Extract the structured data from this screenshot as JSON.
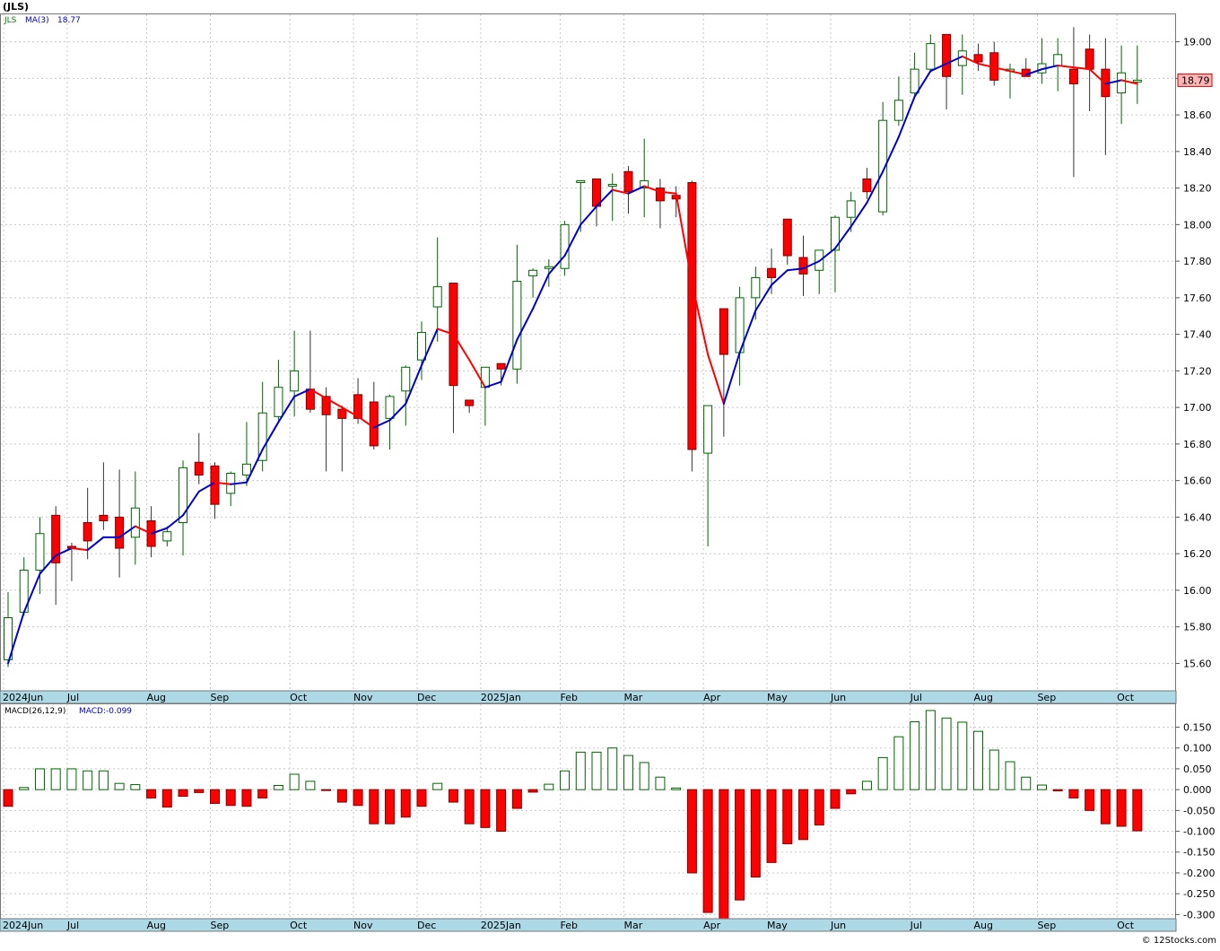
{
  "header": {
    "title": "(JLS)"
  },
  "price_panel": {
    "legend_symbol": "JLS",
    "legend_ma_label": "MA(3)",
    "legend_ma_value": "18.77",
    "last_price_label": "18.79"
  },
  "macd_panel": {
    "legend_label": "MACD(26,12,9)",
    "legend_value": "MACD:-0.099"
  },
  "footer": {
    "copyright": "© 12Stocks.com"
  },
  "colors": {
    "up_candle_border": "#006400",
    "down_candle_fill": "#ff0000",
    "ma_rising": "#0000cc",
    "ma_falling": "#ff0000",
    "axis_strip": "#add8e6",
    "last_price_bg": "#ffb6b6"
  },
  "chart_data": [
    {
      "type": "candlestick",
      "name": "JLS",
      "x_labels": [
        "2024Jun",
        "Jul",
        "Aug",
        "Sep",
        "Oct",
        "Nov",
        "Dec",
        "2025Jan",
        "Feb",
        "Mar",
        "Apr",
        "May",
        "Jun",
        "Jul",
        "Aug",
        "Sep",
        "Oct"
      ],
      "x_label_week_index": [
        0,
        4,
        9,
        13,
        18,
        22,
        26,
        30,
        35,
        39,
        44,
        48,
        52,
        57,
        61,
        65,
        70
      ],
      "yticks": [
        "15.60",
        "15.80",
        "16.00",
        "16.20",
        "16.40",
        "16.60",
        "16.80",
        "17.00",
        "17.20",
        "17.40",
        "17.60",
        "17.80",
        "18.00",
        "18.20",
        "18.40",
        "18.60",
        "18.80",
        "19.00"
      ],
      "ylim": [
        15.45,
        19.15
      ],
      "grid": true,
      "ohlc": [
        [
          15.62,
          15.99,
          15.58,
          15.85
        ],
        [
          15.88,
          16.18,
          15.86,
          16.11
        ],
        [
          16.11,
          16.4,
          15.98,
          16.31
        ],
        [
          16.41,
          16.46,
          15.92,
          16.15
        ],
        [
          16.24,
          16.26,
          16.05,
          16.23
        ],
        [
          16.37,
          16.56,
          16.17,
          16.27
        ],
        [
          16.41,
          16.7,
          16.33,
          16.38
        ],
        [
          16.4,
          16.66,
          16.07,
          16.23
        ],
        [
          16.29,
          16.65,
          16.14,
          16.45
        ],
        [
          16.38,
          16.46,
          16.18,
          16.24
        ],
        [
          16.27,
          16.35,
          16.24,
          16.32
        ],
        [
          16.37,
          16.71,
          16.19,
          16.67
        ],
        [
          16.7,
          16.86,
          16.58,
          16.63
        ],
        [
          16.68,
          16.7,
          16.39,
          16.47
        ],
        [
          16.53,
          16.65,
          16.46,
          16.64
        ],
        [
          16.63,
          16.92,
          16.57,
          16.69
        ],
        [
          16.71,
          17.14,
          16.65,
          16.97
        ],
        [
          16.95,
          17.26,
          16.93,
          17.11
        ],
        [
          17.09,
          17.42,
          16.95,
          17.2
        ],
        [
          17.1,
          17.42,
          16.97,
          16.99
        ],
        [
          17.06,
          17.11,
          16.65,
          16.96
        ],
        [
          16.99,
          17.01,
          16.65,
          16.94
        ],
        [
          17.07,
          17.16,
          16.91,
          16.94
        ],
        [
          17.03,
          17.14,
          16.77,
          16.79
        ],
        [
          16.94,
          17.07,
          16.77,
          17.06
        ],
        [
          17.09,
          17.23,
          16.9,
          17.22
        ],
        [
          17.26,
          17.47,
          17.15,
          17.41
        ],
        [
          17.55,
          17.93,
          17.36,
          17.66
        ],
        [
          17.68,
          17.68,
          16.86,
          17.12
        ],
        [
          17.04,
          17.04,
          16.97,
          17.01
        ],
        [
          17.11,
          17.21,
          16.9,
          17.22
        ],
        [
          17.24,
          17.24,
          17.12,
          17.21
        ],
        [
          17.21,
          17.89,
          17.13,
          17.69
        ],
        [
          17.72,
          17.76,
          17.6,
          17.75
        ],
        [
          17.76,
          17.81,
          17.66,
          17.77
        ],
        [
          17.76,
          18.02,
          17.72,
          18.0
        ],
        [
          18.23,
          18.24,
          17.96,
          18.24
        ],
        [
          18.25,
          18.25,
          17.99,
          18.1
        ],
        [
          18.22,
          18.28,
          18.02,
          18.22
        ],
        [
          18.29,
          18.32,
          18.06,
          18.18
        ],
        [
          18.2,
          18.47,
          18.04,
          18.24
        ],
        [
          18.2,
          18.25,
          17.98,
          18.13
        ],
        [
          18.16,
          18.21,
          18.04,
          18.14
        ],
        [
          18.23,
          18.24,
          16.65,
          16.77
        ],
        [
          16.75,
          17.01,
          16.24,
          17.01
        ],
        [
          17.54,
          17.54,
          16.84,
          17.29
        ],
        [
          17.3,
          17.66,
          17.12,
          17.6
        ],
        [
          17.6,
          17.77,
          17.48,
          17.71
        ],
        [
          17.76,
          17.87,
          17.62,
          17.71
        ],
        [
          18.03,
          18.03,
          17.78,
          17.83
        ],
        [
          17.82,
          17.94,
          17.61,
          17.73
        ],
        [
          17.75,
          17.86,
          17.62,
          17.86
        ],
        [
          17.86,
          18.05,
          17.63,
          18.04
        ],
        [
          18.04,
          18.18,
          17.96,
          18.13
        ],
        [
          18.25,
          18.31,
          18.14,
          18.18
        ],
        [
          18.07,
          18.67,
          18.05,
          18.57
        ],
        [
          18.57,
          18.81,
          18.54,
          18.68
        ],
        [
          18.72,
          18.94,
          18.69,
          18.85
        ],
        [
          18.85,
          19.04,
          18.84,
          18.99
        ],
        [
          19.04,
          19.04,
          18.63,
          18.81
        ],
        [
          18.87,
          19.04,
          18.71,
          18.95
        ],
        [
          18.93,
          18.99,
          18.84,
          18.89
        ],
        [
          18.94,
          19.0,
          18.76,
          18.79
        ],
        [
          18.85,
          18.88,
          18.69,
          18.85
        ],
        [
          18.85,
          18.91,
          18.82,
          18.81
        ],
        [
          18.83,
          19.02,
          18.77,
          18.88
        ],
        [
          18.87,
          19.02,
          18.73,
          18.93
        ],
        [
          18.85,
          19.08,
          18.26,
          18.77
        ],
        [
          18.96,
          19.04,
          18.62,
          18.85
        ],
        [
          18.85,
          19.02,
          18.38,
          18.7
        ],
        [
          18.72,
          18.98,
          18.55,
          18.83
        ],
        [
          18.79,
          18.98,
          18.66,
          18.79
        ]
      ],
      "ma3": [
        15.6,
        15.88,
        16.09,
        16.19,
        16.23,
        16.22,
        16.29,
        16.29,
        16.35,
        16.31,
        16.34,
        16.41,
        16.54,
        16.59,
        16.58,
        16.59,
        16.77,
        16.92,
        17.06,
        17.1,
        17.05,
        17.0,
        16.95,
        16.89,
        16.93,
        17.02,
        17.23,
        17.43,
        17.4,
        17.26,
        17.11,
        17.14,
        17.37,
        17.54,
        17.73,
        17.83,
        18.0,
        18.1,
        18.19,
        18.17,
        18.21,
        18.18,
        18.17,
        17.68,
        17.29,
        17.02,
        17.3,
        17.53,
        17.67,
        17.75,
        17.76,
        17.8,
        17.87,
        17.99,
        18.12,
        18.29,
        18.48,
        18.7,
        18.84,
        18.88,
        18.92,
        18.88,
        18.86,
        18.84,
        18.82,
        18.85,
        18.87,
        18.86,
        18.85,
        18.77,
        18.79,
        18.77
      ],
      "last_label": "18.79"
    },
    {
      "type": "bar",
      "name": "MACD(26,12,9)",
      "yticks": [
        "-0.300",
        "-0.250",
        "-0.200",
        "-0.150",
        "-0.100",
        "-0.050",
        "0.000",
        "0.050",
        "0.100",
        "0.150"
      ],
      "ylim": [
        -0.31,
        0.205
      ],
      "grid": true,
      "values": [
        -0.04,
        0.005,
        0.05,
        0.05,
        0.05,
        0.045,
        0.045,
        0.015,
        0.012,
        -0.02,
        -0.042,
        -0.016,
        -0.007,
        -0.033,
        -0.038,
        -0.04,
        -0.02,
        0.01,
        0.037,
        0.02,
        -0.001,
        -0.03,
        -0.038,
        -0.082,
        -0.082,
        -0.066,
        -0.04,
        0.015,
        -0.03,
        -0.082,
        -0.091,
        -0.1,
        -0.045,
        -0.006,
        0.013,
        0.045,
        0.09,
        0.09,
        0.1,
        0.082,
        0.065,
        0.03,
        0.004,
        -0.2,
        -0.295,
        -0.31,
        -0.265,
        -0.21,
        -0.175,
        -0.13,
        -0.12,
        -0.085,
        -0.045,
        -0.01,
        0.02,
        0.077,
        0.127,
        0.163,
        0.19,
        0.172,
        0.162,
        0.14,
        0.095,
        0.067,
        0.03,
        0.011,
        -0.003,
        -0.02,
        -0.05,
        -0.082,
        -0.088,
        -0.099
      ]
    }
  ]
}
